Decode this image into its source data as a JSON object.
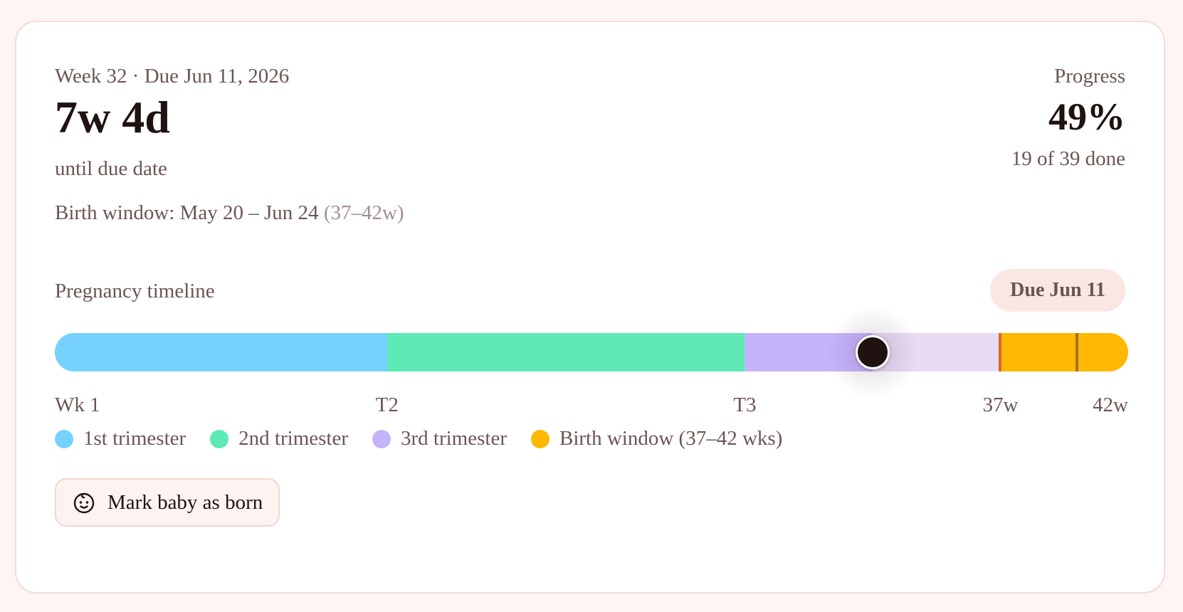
{
  "header": {
    "eyebrow": "Week 32 · Due Jun 11, 2026",
    "countdown": "7w 4d",
    "countdown_caption": "until due date",
    "birth_window_label": "Birth window: May 20 – Jun 24",
    "birth_window_weeks": "(37–42w)"
  },
  "progress": {
    "label": "Progress",
    "percent_text": "49%",
    "done_text": "19 of 39 done",
    "percent": 49
  },
  "timeline": {
    "title": "Pregnancy timeline",
    "due_pill": "Due Jun 11",
    "total_weeks": 42,
    "current_week": 32,
    "segments": [
      {
        "name": "1st trimester",
        "start_week": 0,
        "end_week": 13,
        "color": "#76d1ff"
      },
      {
        "name": "2nd trimester",
        "start_week": 13,
        "end_week": 27,
        "color": "#5deab5"
      },
      {
        "name": "3rd trimester",
        "start_week": 27,
        "end_week": 37,
        "color": "#c5b3fb",
        "rest_color": "#e7dbf6"
      },
      {
        "name": "Birth window",
        "start_week": 37,
        "end_week": 42,
        "color": "#ffb905"
      }
    ],
    "markers": {
      "birth_window_start_week": 37,
      "due_week": 40
    },
    "ticks": {
      "wk1": "Wk 1",
      "t2": "T2",
      "t3": "T3",
      "w37": "37w",
      "w42": "42w"
    }
  },
  "legend": {
    "t1": "1st trimester",
    "t2": "2nd trimester",
    "t3": "3rd trimester",
    "birth": "Birth window (37–42 wks)"
  },
  "actions": {
    "mark_born_label": "Mark baby as born",
    "mark_born_icon": "baby-face-icon"
  },
  "colors": {
    "background": "#fff5f2",
    "card": "#ffffff",
    "text_dark": "#1f1210",
    "text_muted": "#6b5553",
    "accent_pill": "#fae6e2"
  }
}
